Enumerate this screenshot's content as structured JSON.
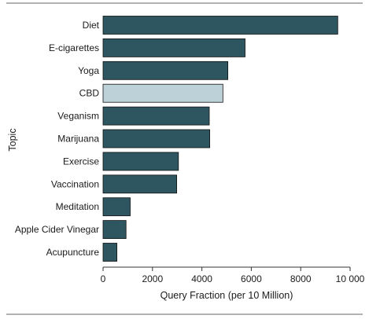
{
  "chart_data": {
    "type": "bar",
    "orientation": "horizontal",
    "categories": [
      "Diet",
      "E-cigarettes",
      "Yoga",
      "CBD",
      "Veganism",
      "Marijuana",
      "Exercise",
      "Vaccination",
      "Meditation",
      "Apple Cider Vinegar",
      "Acupuncture"
    ],
    "values": [
      9500,
      5750,
      5050,
      4850,
      4300,
      4320,
      3050,
      2980,
      1100,
      930,
      560
    ],
    "highlight_category": "CBD",
    "xlabel": "Query Fraction (per 10 Million)",
    "ylabel": "Topic",
    "xlim": [
      0,
      10000
    ],
    "xticks": [
      0,
      2000,
      4000,
      6000,
      8000,
      10000
    ],
    "xtick_labels": [
      "0",
      "2000",
      "4000",
      "6000",
      "8000",
      "10 000"
    ],
    "grid": false,
    "colors": {
      "bar": "#2e5660",
      "highlight": "#bdd2d8",
      "bar_outline": "#111111",
      "axis": "#333333",
      "rule": "#666666"
    }
  }
}
